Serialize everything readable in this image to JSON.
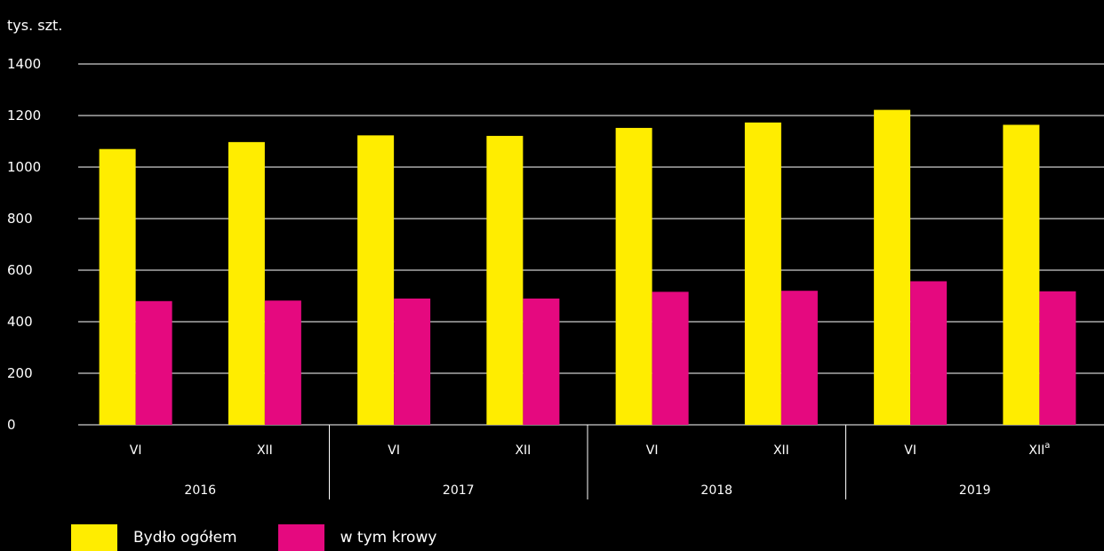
{
  "chart_data": {
    "type": "bar",
    "ylabel": "tys. szt.",
    "ylim": [
      0,
      1400
    ],
    "yticks": [
      "0",
      "200",
      "400",
      "600",
      "800",
      "1000",
      "1200",
      "1400"
    ],
    "categories": [
      "VI",
      "XII",
      "VI",
      "XII",
      "VI",
      "XII",
      "VI",
      "XII"
    ],
    "category_superscripts": [
      "",
      "",
      "",
      "",
      "",
      "",
      "",
      "a"
    ],
    "groups": [
      "2016",
      "2017",
      "2018",
      "2019"
    ],
    "series": [
      {
        "name": "Bydło ogółem",
        "color": "#FFED00",
        "values": [
          1070,
          1097,
          1123,
          1121,
          1152,
          1173,
          1222,
          1164
        ]
      },
      {
        "name": "w tym krowy",
        "color": "#E5097F",
        "values": [
          480,
          482,
          490,
          490,
          516,
          520,
          557,
          518
        ]
      }
    ],
    "grid": true,
    "legend": "bottom-left"
  }
}
